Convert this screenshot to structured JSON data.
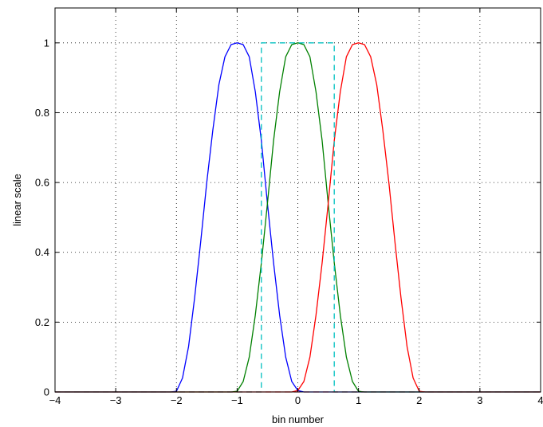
{
  "chart_data": {
    "type": "line",
    "title": "",
    "xlabel": "bin number",
    "ylabel": "linear scale",
    "xlim": [
      -4,
      4
    ],
    "ylim": [
      0,
      1.1
    ],
    "xticks": [
      -4,
      -3,
      -2,
      -1,
      0,
      1,
      2,
      3,
      4
    ],
    "xtick_labels": [
      "−4",
      "−3",
      "−2",
      "−1",
      "0",
      "1",
      "2",
      "3",
      "4"
    ],
    "yticks": [
      0,
      0.2,
      0.4,
      0.6,
      0.8,
      1
    ],
    "ytick_labels": [
      "0",
      "0.2",
      "0.4",
      "0.6",
      "0.8",
      "1"
    ],
    "grid": true,
    "grid_style": "dotted",
    "legend": "none",
    "series": [
      {
        "color": "#0000ff",
        "style": "solid",
        "x": [
          -4,
          -2.1,
          -2.0,
          -1.9,
          -1.8,
          -1.7,
          -1.6,
          -1.5,
          -1.4,
          -1.3,
          -1.2,
          -1.1,
          -1.0,
          -0.9,
          -0.8,
          -0.7,
          -0.6,
          -0.5,
          -0.4,
          -0.3,
          -0.2,
          -0.1,
          0.0,
          0.1,
          4
        ],
        "y": [
          0,
          0,
          0.002,
          0.04,
          0.13,
          0.27,
          0.43,
          0.6,
          0.75,
          0.88,
          0.96,
          0.995,
          1.0,
          0.995,
          0.96,
          0.86,
          0.72,
          0.54,
          0.37,
          0.22,
          0.1,
          0.03,
          0.004,
          0,
          0
        ]
      },
      {
        "color": "#008000",
        "style": "solid",
        "x": [
          -4,
          -1.1,
          -1.0,
          -0.9,
          -0.8,
          -0.7,
          -0.6,
          -0.5,
          -0.4,
          -0.3,
          -0.2,
          -0.1,
          0.0,
          0.1,
          0.2,
          0.3,
          0.4,
          0.5,
          0.6,
          0.7,
          0.8,
          0.9,
          1.0,
          1.1,
          4
        ],
        "y": [
          0,
          0,
          0.002,
          0.03,
          0.1,
          0.22,
          0.37,
          0.54,
          0.72,
          0.86,
          0.96,
          0.995,
          1.0,
          0.995,
          0.96,
          0.86,
          0.72,
          0.54,
          0.37,
          0.22,
          0.1,
          0.03,
          0.002,
          0,
          0
        ]
      },
      {
        "color": "#ff0000",
        "style": "solid",
        "x": [
          -4,
          -0.1,
          0.0,
          0.1,
          0.2,
          0.3,
          0.4,
          0.5,
          0.6,
          0.7,
          0.8,
          0.9,
          1.0,
          1.1,
          1.2,
          1.3,
          1.4,
          1.5,
          1.6,
          1.7,
          1.8,
          1.9,
          2.0,
          2.1,
          4
        ],
        "y": [
          0,
          0,
          0.004,
          0.03,
          0.1,
          0.22,
          0.37,
          0.54,
          0.72,
          0.86,
          0.96,
          0.995,
          1.0,
          0.995,
          0.96,
          0.88,
          0.75,
          0.6,
          0.43,
          0.27,
          0.13,
          0.04,
          0.002,
          0,
          0
        ]
      },
      {
        "color": "#00c0c0",
        "style": "dashed",
        "x": [
          -4,
          -0.6,
          -0.6,
          0.6,
          0.6,
          4
        ],
        "y": [
          0,
          0,
          1,
          1,
          0,
          0
        ]
      },
      {
        "color": "#ff4040",
        "style": "dashed",
        "x": [
          -4,
          4
        ],
        "y": [
          0,
          0
        ]
      }
    ]
  }
}
